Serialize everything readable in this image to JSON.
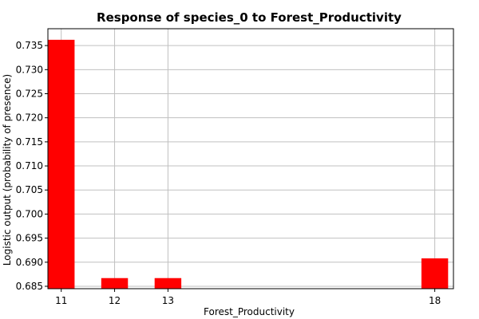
{
  "chart_data": {
    "type": "bar",
    "title": "Response of species_0 to Forest_Productivity",
    "xlabel": "Forest_Productivity",
    "ylabel": "Logistic output (probability of presence)",
    "x": [
      11,
      12,
      13,
      18
    ],
    "x_tick_labels": [
      "11",
      "12",
      "13",
      "18"
    ],
    "values": [
      0.7362,
      0.6867,
      0.6867,
      0.6908
    ],
    "ylim": [
      0.6845,
      0.7385
    ],
    "y_ticks": [
      0.685,
      0.69,
      0.695,
      0.7,
      0.705,
      0.71,
      0.715,
      0.72,
      0.725,
      0.73,
      0.735
    ],
    "y_tick_labels": [
      "0.685",
      "0.690",
      "0.695",
      "0.700",
      "0.705",
      "0.710",
      "0.715",
      "0.720",
      "0.725",
      "0.730",
      "0.735"
    ],
    "xlim": [
      10.75,
      18.35
    ],
    "bar_width": 0.5,
    "grid": true,
    "colors": {
      "bar": "#ff0000",
      "grid": "#c0c0c0",
      "axis": "#000000",
      "background": "#ffffff"
    }
  }
}
